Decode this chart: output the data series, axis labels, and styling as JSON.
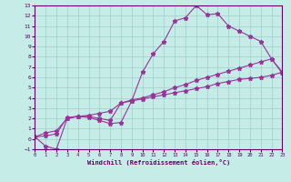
{
  "xlabel": "Windchill (Refroidissement éolien,°C)",
  "xlim": [
    0,
    23
  ],
  "ylim": [
    -1,
    13
  ],
  "xticks": [
    0,
    1,
    2,
    3,
    4,
    5,
    6,
    7,
    8,
    9,
    10,
    11,
    12,
    13,
    14,
    15,
    16,
    17,
    18,
    19,
    20,
    21,
    22,
    23
  ],
  "yticks": [
    -1,
    0,
    1,
    2,
    3,
    4,
    5,
    6,
    7,
    8,
    9,
    10,
    11,
    12,
    13
  ],
  "background_color": "#c5ece6",
  "line_color": "#993399",
  "grid_color": "#9ecfca",
  "curve1_x": [
    0,
    1,
    2,
    3,
    4,
    5,
    6,
    7,
    8,
    9,
    10,
    11,
    12,
    13,
    14,
    15,
    16,
    17,
    18,
    19,
    20,
    21,
    22,
    23
  ],
  "curve1_y": [
    0.2,
    -0.7,
    -1.0,
    2.0,
    2.2,
    2.1,
    1.8,
    1.5,
    1.6,
    3.7,
    6.5,
    8.3,
    9.5,
    11.5,
    11.8,
    13.0,
    12.1,
    12.2,
    11.0,
    10.5,
    10.0,
    9.5,
    7.8,
    6.4
  ],
  "curve2_x": [
    0,
    1,
    2,
    3,
    4,
    5,
    6,
    7,
    8,
    9,
    10,
    11,
    12,
    13,
    14,
    15,
    16,
    17,
    18,
    19,
    20,
    21,
    22,
    23
  ],
  "curve2_y": [
    0.2,
    0.6,
    0.8,
    2.0,
    2.2,
    2.3,
    2.5,
    2.7,
    3.5,
    3.8,
    4.0,
    4.3,
    4.6,
    5.0,
    5.3,
    5.7,
    6.0,
    6.3,
    6.6,
    6.9,
    7.2,
    7.5,
    7.8,
    6.5
  ],
  "curve3_x": [
    0,
    1,
    2,
    3,
    4,
    5,
    6,
    7,
    8,
    9,
    10,
    11,
    12,
    13,
    14,
    15,
    16,
    17,
    18,
    19,
    20,
    21,
    22,
    23
  ],
  "curve3_y": [
    0.2,
    0.3,
    0.5,
    2.1,
    2.2,
    2.2,
    2.0,
    1.8,
    3.5,
    3.7,
    3.9,
    4.1,
    4.3,
    4.5,
    4.7,
    4.9,
    5.1,
    5.4,
    5.6,
    5.8,
    5.9,
    6.0,
    6.2,
    6.5
  ]
}
